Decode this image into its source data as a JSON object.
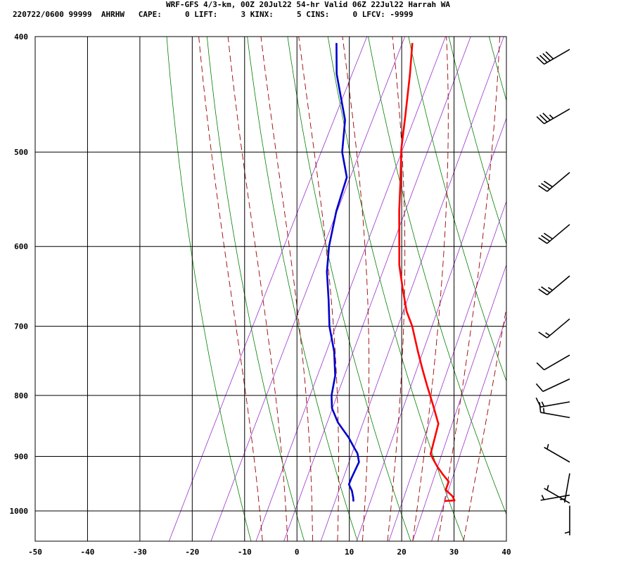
{
  "header": {
    "title": "WRF-GFS 4/3-km, 00Z 20Jul22 54-hr Valid 06Z 22Jul22 Harrah WA",
    "stats": "220722/0600 99999  AHRHW   CAPE:     0 LIFT:     3 KINX:     5 CINS:     0 LFCV: -9999"
  },
  "colors": {
    "temperature": "#ff0000",
    "dewpoint": "#0000cc",
    "dry_adiabat": "#008000",
    "moist_adiabat": "#990000",
    "mixing_ratio": "#9933cc",
    "grid": "#000000"
  },
  "chart_data": {
    "type": "line",
    "title": "",
    "xlabel": "",
    "ylabel": "",
    "xlim": [
      -50,
      40
    ],
    "ylim": [
      1050,
      400
    ],
    "y_scale": "log-pressure",
    "x_ticks": [
      -50,
      -40,
      -30,
      -20,
      -10,
      0,
      10,
      20,
      30,
      40
    ],
    "y_ticks": [
      400,
      500,
      600,
      700,
      800,
      900,
      1000
    ],
    "grid": true,
    "series": [
      {
        "key": "temperature",
        "points": [
          [
            -25.5,
            405
          ],
          [
            -23,
            430
          ],
          [
            -20,
            465
          ],
          [
            -17.5,
            497
          ],
          [
            -14.5,
            530
          ],
          [
            -12,
            560
          ],
          [
            -9,
            595
          ],
          [
            -6.8,
            622
          ],
          [
            -4,
            650
          ],
          [
            -1,
            680
          ],
          [
            1.5,
            700
          ],
          [
            5,
            735
          ],
          [
            7.5,
            760
          ],
          [
            10,
            785
          ],
          [
            13,
            815
          ],
          [
            15.8,
            845
          ],
          [
            16.5,
            870
          ],
          [
            17.2,
            896
          ],
          [
            18.2,
            905
          ],
          [
            19.7,
            918
          ],
          [
            21.5,
            932
          ],
          [
            23.3,
            945
          ],
          [
            23.5,
            960
          ],
          [
            25.4,
            972
          ],
          [
            26.2,
            980
          ],
          [
            24.3,
            981
          ]
        ]
      },
      {
        "key": "dewpoint",
        "points": [
          [
            -40,
            405
          ],
          [
            -37,
            430
          ],
          [
            -31,
            470
          ],
          [
            -28.5,
            500
          ],
          [
            -25.2,
            525
          ],
          [
            -24,
            560
          ],
          [
            -22,
            600
          ],
          [
            -20,
            630
          ],
          [
            -17,
            665
          ],
          [
            -14.3,
            700
          ],
          [
            -11,
            735
          ],
          [
            -8.5,
            770
          ],
          [
            -7.3,
            800
          ],
          [
            -6,
            820
          ],
          [
            -3.5,
            843
          ],
          [
            0,
            868
          ],
          [
            2,
            885
          ],
          [
            3.2,
            895
          ],
          [
            4.3,
            910
          ],
          [
            4.4,
            940
          ],
          [
            4.5,
            950
          ],
          [
            5.7,
            962
          ],
          [
            6.6,
            975
          ],
          [
            7,
            982
          ]
        ]
      }
    ],
    "dry_adiabats_theta_K": [
      260,
      270,
      280,
      290,
      300,
      310,
      320,
      330,
      340,
      350,
      360,
      370
    ],
    "moist_adiabats_thetaw_C": [
      -10,
      -5,
      0,
      5,
      10,
      15,
      20,
      25,
      30
    ],
    "mixing_ratio_lines_gkg": [
      0.5,
      1,
      2,
      3,
      5,
      8,
      12,
      16,
      20
    ],
    "wind_barbs": [
      {
        "pressure": 410,
        "direction": 240,
        "speed": 40
      },
      {
        "pressure": 460,
        "direction": 240,
        "speed": 35
      },
      {
        "pressure": 520,
        "direction": 230,
        "speed": 30
      },
      {
        "pressure": 575,
        "direction": 230,
        "speed": 30
      },
      {
        "pressure": 635,
        "direction": 230,
        "speed": 25
      },
      {
        "pressure": 690,
        "direction": 230,
        "speed": 15
      },
      {
        "pressure": 740,
        "direction": 240,
        "speed": 10
      },
      {
        "pressure": 775,
        "direction": 245,
        "speed": 10
      },
      {
        "pressure": 810,
        "direction": 260,
        "speed": 15
      },
      {
        "pressure": 835,
        "direction": 280,
        "speed": 15
      },
      {
        "pressure": 910,
        "direction": 300,
        "speed": 5
      },
      {
        "pressure": 930,
        "direction": 190,
        "speed": 5
      },
      {
        "pressure": 970,
        "direction": 260,
        "speed": 5
      },
      {
        "pressure": 985,
        "direction": 300,
        "speed": 5
      },
      {
        "pressure": 990,
        "direction": 180,
        "speed": 5
      }
    ]
  }
}
